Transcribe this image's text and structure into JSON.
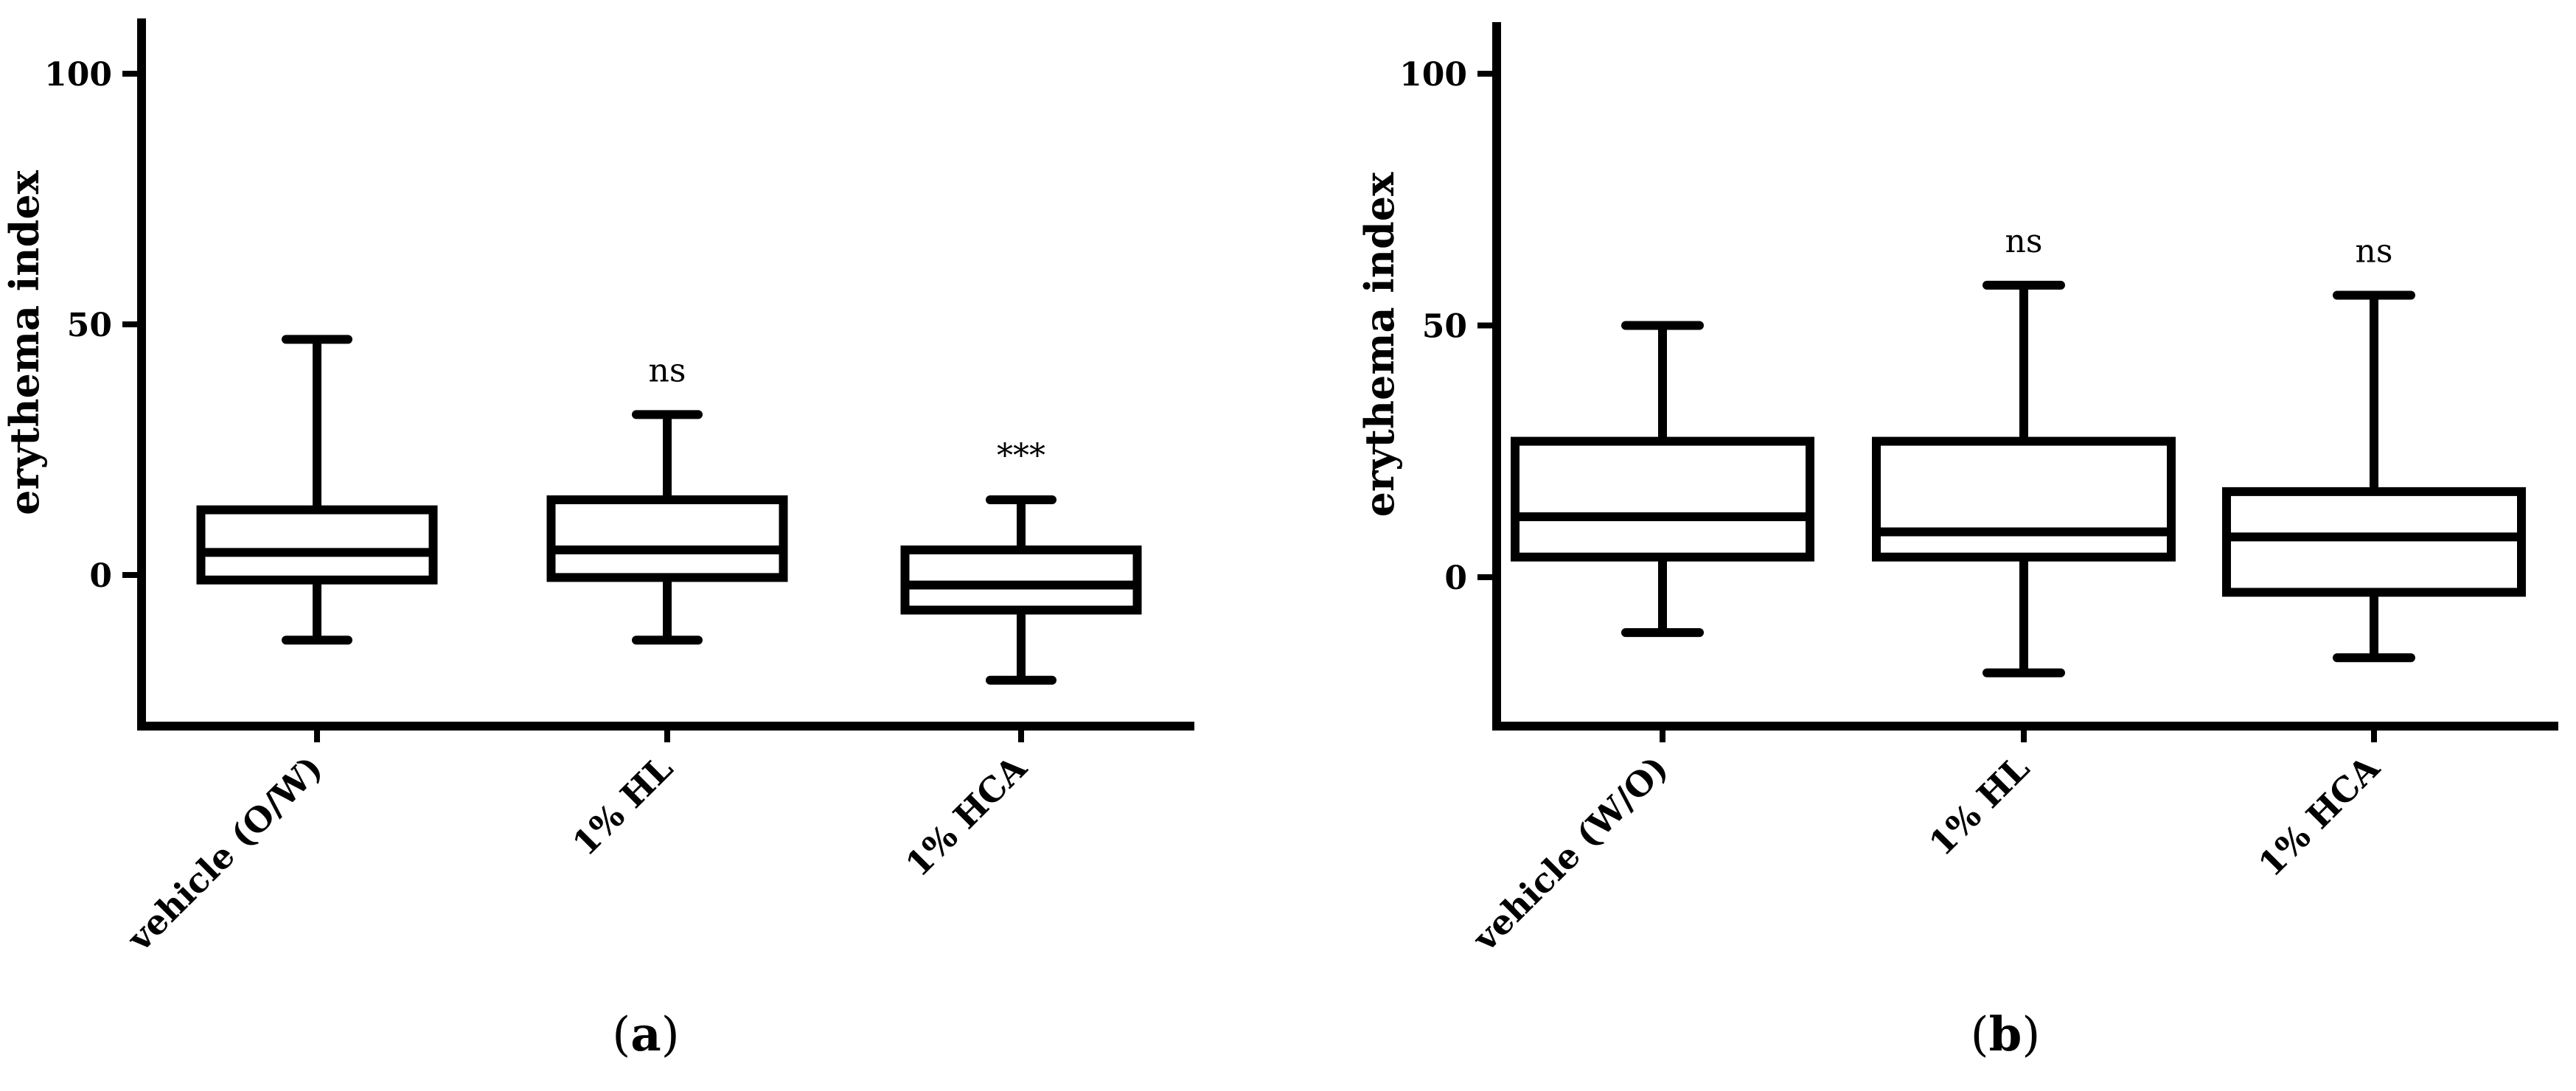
{
  "chart_data": [
    {
      "type": "box",
      "panel_label": "(a)",
      "panel_letter": "a",
      "ylabel": "erythema index",
      "yticks": [
        "0",
        "50",
        "100"
      ],
      "ylim": [
        -30,
        110
      ],
      "categories": [
        "vehicle (O/W)",
        "1% HL",
        "1% HCA"
      ],
      "boxes": [
        {
          "min": -13,
          "q1": -1,
          "median": 4.5,
          "q3": 13,
          "max": 47,
          "significance": ""
        },
        {
          "min": -13,
          "q1": -0.5,
          "median": 5,
          "q3": 15,
          "max": 32,
          "significance": "ns"
        },
        {
          "min": -21,
          "q1": -7,
          "median": -2,
          "q3": 5,
          "max": 15,
          "significance": "***"
        }
      ]
    },
    {
      "type": "box",
      "panel_label": "(b)",
      "panel_letter": "b",
      "ylabel": "erythema index",
      "yticks": [
        "0",
        "50",
        "100"
      ],
      "ylim": [
        -30,
        110
      ],
      "categories": [
        "vehicle (W/O)",
        "1% HL",
        "1% HCA"
      ],
      "boxes": [
        {
          "min": -11,
          "q1": 4,
          "median": 12,
          "q3": 27,
          "max": 50,
          "significance": ""
        },
        {
          "min": -19,
          "q1": 4,
          "median": 9,
          "q3": 27,
          "max": 58,
          "significance": "ns"
        },
        {
          "min": -16,
          "q1": -3,
          "median": 8,
          "q3": 17,
          "max": 56,
          "significance": "ns"
        }
      ]
    }
  ]
}
